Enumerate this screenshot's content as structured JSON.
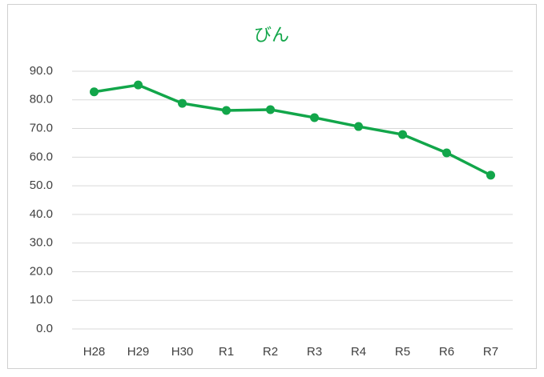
{
  "chart_data": {
    "type": "line",
    "title": "びん",
    "categories": [
      "H28",
      "H29",
      "H30",
      "R1",
      "R2",
      "R3",
      "R4",
      "R5",
      "R6",
      "R7"
    ],
    "series": [
      {
        "name": "びん",
        "color": "#12a64a",
        "values": [
          82.8,
          85.2,
          78.8,
          76.3,
          76.6,
          73.8,
          70.7,
          67.9,
          61.5,
          53.7
        ]
      }
    ],
    "ylim": [
      0,
      90
    ],
    "yticks": [
      {
        "value": 0,
        "label": "0.0"
      },
      {
        "value": 10,
        "label": "10.0"
      },
      {
        "value": 20,
        "label": "20.0"
      },
      {
        "value": 30,
        "label": "30.0"
      },
      {
        "value": 40,
        "label": "40.0"
      },
      {
        "value": 50,
        "label": "50.0"
      },
      {
        "value": 60,
        "label": "60.0"
      },
      {
        "value": 70,
        "label": "70.0"
      },
      {
        "value": 80,
        "label": "80.0"
      },
      {
        "value": 90,
        "label": "90.0"
      }
    ],
    "grid": true
  }
}
